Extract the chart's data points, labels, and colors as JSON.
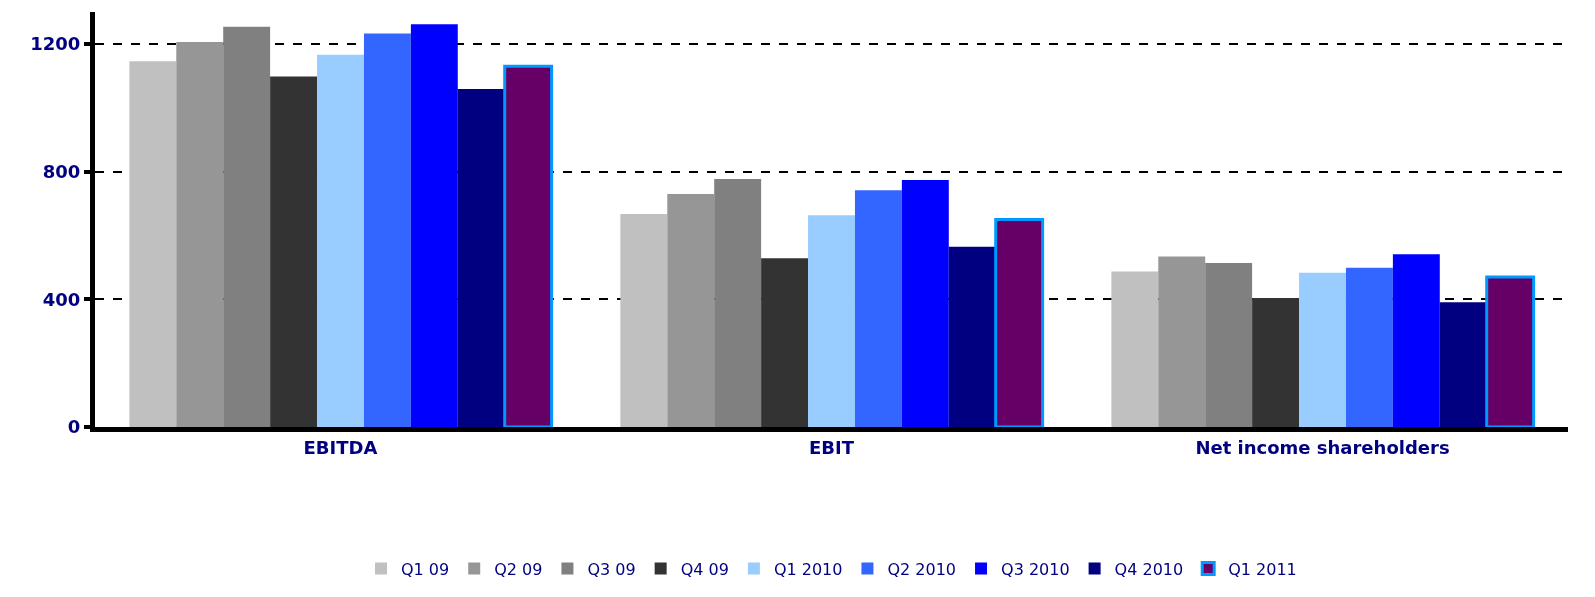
{
  "chart_data": {
    "type": "bar",
    "categories": [
      "EBITDA",
      "EBIT",
      "Net income shareholders"
    ],
    "series": [
      {
        "name": "Q1 09",
        "color": "#c0c0c0",
        "values": [
          1146,
          667,
          487
        ]
      },
      {
        "name": "Q2 09",
        "color": "#969696",
        "values": [
          1206,
          730,
          534
        ]
      },
      {
        "name": "Q3 09",
        "color": "#808080",
        "values": [
          1254,
          777,
          514
        ]
      },
      {
        "name": "Q4 09",
        "color": "#333333",
        "values": [
          1098,
          529,
          404
        ]
      },
      {
        "name": "Q1 2010",
        "color": "#99ccff",
        "values": [
          1166,
          663,
          483
        ]
      },
      {
        "name": "Q2 2010",
        "color": "#3366ff",
        "values": [
          1233,
          742,
          499
        ]
      },
      {
        "name": "Q3 2010",
        "color": "#0000ff",
        "values": [
          1262,
          774,
          541
        ]
      },
      {
        "name": "Q4 2010",
        "color": "#000080",
        "values": [
          1059,
          565,
          391
        ]
      },
      {
        "name": "Q1 2011",
        "color": "#660066",
        "values": [
          1130,
          650,
          470
        ]
      }
    ],
    "ylim": [
      0,
      1300
    ],
    "yticks": [
      0,
      400,
      800,
      1200
    ],
    "grid": "y",
    "legend": "bottom"
  }
}
